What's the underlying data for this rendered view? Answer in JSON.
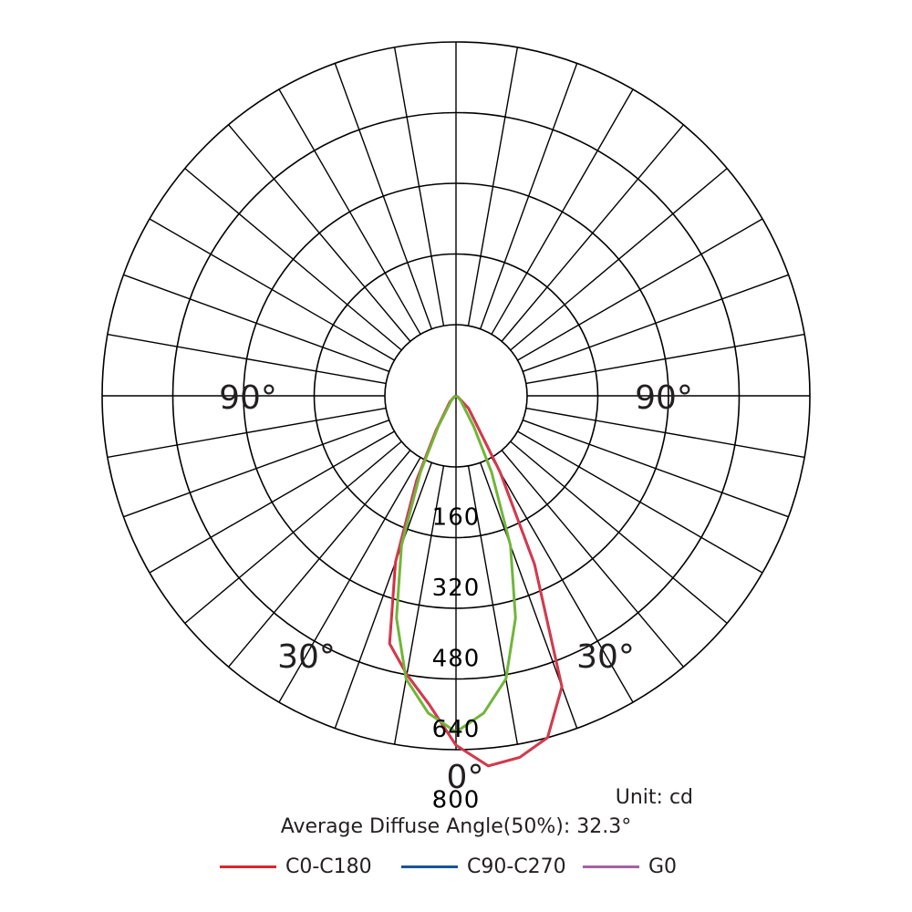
{
  "chart_data": {
    "type": "polar",
    "unit": "Unit: cd",
    "average_diffuse_angle": "Average Diffuse Angle(50%): 32.3°",
    "radial_ticks": [
      "160",
      "320",
      "480",
      "640",
      "800"
    ],
    "radial_max": 800,
    "angle_labels": [
      {
        "text": "0°",
        "angle": 0
      },
      {
        "text": "30°",
        "angle": -30
      },
      {
        "text": "30°",
        "angle": 30
      },
      {
        "text": "90°",
        "angle": -90
      },
      {
        "text": "90°",
        "angle": 90
      }
    ],
    "angles_deg": [
      -90,
      -60,
      -45,
      -30,
      -25,
      -20,
      -15,
      -10,
      -5,
      0,
      5,
      10,
      15,
      20,
      25,
      30,
      45,
      60,
      90
    ],
    "series": [
      {
        "name": "C0-C180",
        "color": "#e0262b",
        "values": [
          0,
          5,
          20,
          90,
          210,
          400,
          580,
          640,
          700,
          790,
          840,
          830,
          800,
          700,
          420,
          200,
          40,
          5,
          0
        ]
      },
      {
        "name": "C90-C270",
        "color": "#17539c",
        "values": [
          0,
          3,
          15,
          80,
          190,
          360,
          520,
          650,
          720,
          760,
          720,
          650,
          520,
          360,
          190,
          80,
          15,
          3,
          0
        ]
      },
      {
        "name": "G0",
        "color": "#a561a5",
        "values": [
          0,
          5,
          20,
          90,
          210,
          410,
          580,
          640,
          700,
          790,
          840,
          830,
          800,
          700,
          420,
          200,
          40,
          5,
          0
        ]
      },
      {
        "name": "",
        "color": "#71b53a",
        "values": [
          0,
          3,
          15,
          80,
          190,
          360,
          520,
          650,
          720,
          760,
          720,
          650,
          520,
          360,
          190,
          80,
          15,
          3,
          0
        ]
      }
    ],
    "legend": [
      {
        "name": "C0-C180",
        "color": "#e0262b"
      },
      {
        "name": "C90-C270",
        "color": "#17539c"
      },
      {
        "name": "G0",
        "color": "#a561a5"
      }
    ]
  }
}
